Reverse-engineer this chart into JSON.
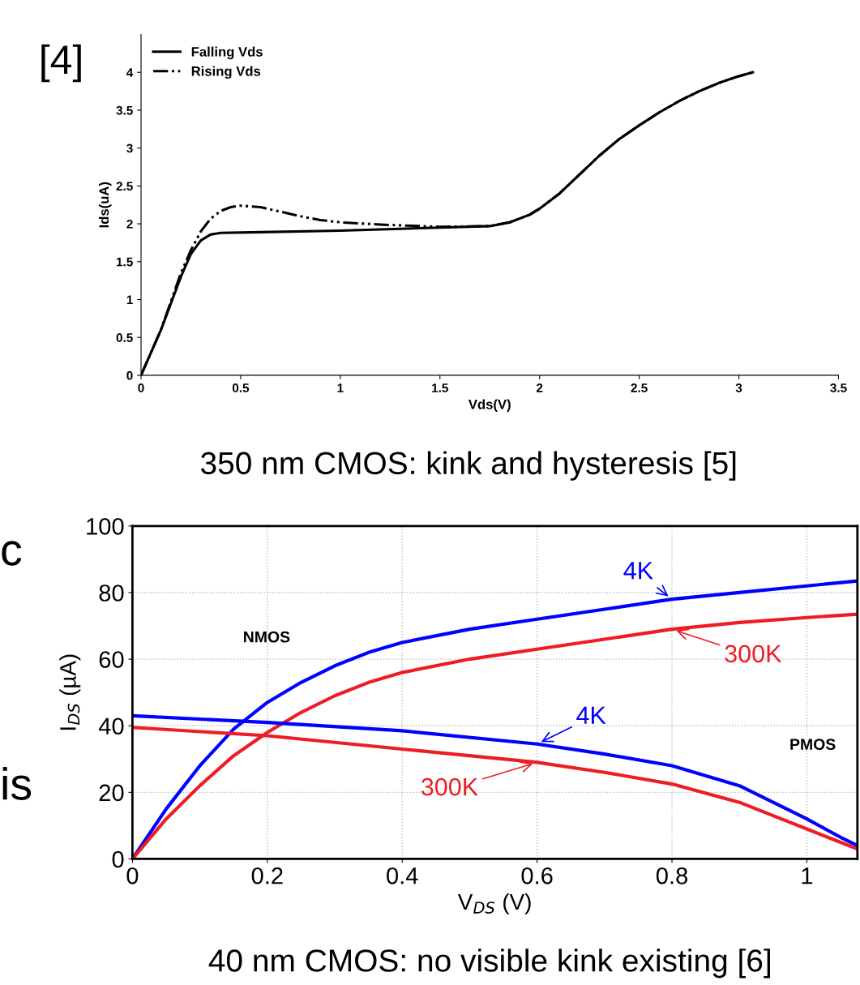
{
  "chart_data": [
    {
      "type": "line",
      "xlabel": "Vds(V)",
      "ylabel": "Ids(uA)",
      "xlim": [
        0,
        3.5
      ],
      "ylim": [
        0,
        4.5
      ],
      "xticks": [
        0,
        0.5,
        1,
        1.5,
        2,
        2.5,
        3,
        3.5
      ],
      "yticks": [
        0,
        0.5,
        1,
        1.5,
        2,
        2.5,
        3,
        3.5,
        4
      ],
      "grid": false,
      "legend": "top left",
      "marker": "none",
      "annotations": [
        "[4]",
        "350 nm CMOS: kink and hysteresis [5]"
      ],
      "series": [
        {
          "name": "Falling Vds",
          "color": "#000000",
          "line_style": "solid",
          "x": [
            0,
            0.1,
            0.2,
            0.25,
            0.3,
            0.35,
            0.4,
            0.6,
            1.0,
            1.5,
            1.75,
            1.85,
            1.95,
            2.0,
            2.1,
            2.2,
            2.3,
            2.4,
            2.5,
            2.6,
            2.7,
            2.8,
            2.9,
            3.0,
            3.07
          ],
          "values": [
            0,
            0.6,
            1.3,
            1.6,
            1.78,
            1.86,
            1.88,
            1.89,
            1.91,
            1.95,
            1.97,
            2.02,
            2.12,
            2.2,
            2.4,
            2.65,
            2.9,
            3.12,
            3.3,
            3.47,
            3.62,
            3.75,
            3.86,
            3.95,
            4.0
          ]
        },
        {
          "name": "Rising Vds",
          "color": "#000000",
          "line_style": "dashed",
          "x": [
            0,
            0.1,
            0.2,
            0.25,
            0.3,
            0.35,
            0.4,
            0.45,
            0.5,
            0.6,
            0.7,
            0.8,
            0.9,
            1.0,
            1.2,
            1.4,
            1.5,
            1.75,
            1.85,
            1.95,
            2.0,
            2.1,
            2.2,
            2.3,
            2.4,
            2.5,
            2.6,
            2.7,
            2.8,
            2.9,
            3.0,
            3.07
          ],
          "values": [
            0,
            0.6,
            1.35,
            1.65,
            1.9,
            2.07,
            2.17,
            2.22,
            2.24,
            2.22,
            2.16,
            2.1,
            2.05,
            2.02,
            1.99,
            1.97,
            1.96,
            1.97,
            2.02,
            2.12,
            2.2,
            2.4,
            2.65,
            2.9,
            3.12,
            3.3,
            3.47,
            3.62,
            3.75,
            3.86,
            3.95,
            4.0
          ]
        }
      ]
    },
    {
      "type": "line",
      "xlabel": "V$_{DS}$ (V)",
      "ylabel": "I$_{DS}$ (µA)",
      "xlim": [
        0,
        1.075
      ],
      "ylim": [
        0,
        100
      ],
      "xticks": [
        0,
        0.2,
        0.4,
        0.6,
        0.8,
        1
      ],
      "yticks": [
        0,
        20,
        40,
        60,
        80,
        100
      ],
      "grid": true,
      "marker": "none",
      "annotations": [
        "c",
        "is",
        "40 nm CMOS: no visible kink existing [6]",
        "NMOS",
        "PMOS"
      ],
      "series": [
        {
          "name": "4K",
          "color": "#0000ff",
          "x": [
            0,
            0.05,
            0.1,
            0.15,
            0.2,
            0.25,
            0.3,
            0.35,
            0.4,
            0.5,
            0.6,
            0.7,
            0.8,
            0.9,
            1.0,
            1.075
          ],
          "values": [
            0,
            15,
            28,
            39,
            47,
            53,
            58,
            62,
            65,
            69,
            72,
            75,
            78,
            80,
            82,
            83.5
          ]
        },
        {
          "name": "300K",
          "color": "#ee1c25",
          "x": [
            0,
            0.05,
            0.1,
            0.15,
            0.2,
            0.25,
            0.3,
            0.35,
            0.4,
            0.5,
            0.6,
            0.7,
            0.8,
            0.9,
            1.0,
            1.075
          ],
          "values": [
            0,
            12,
            22,
            31,
            38,
            44,
            49,
            53,
            56,
            60,
            63,
            66,
            69,
            71,
            72.5,
            73.5
          ]
        },
        {
          "name": "4K",
          "color": "#0000ff",
          "x": [
            0,
            0.2,
            0.4,
            0.6,
            0.7,
            0.8,
            0.9,
            0.95,
            1.0,
            1.05,
            1.075
          ],
          "values": [
            43,
            41,
            38.5,
            34.5,
            31.5,
            28,
            22,
            17,
            12,
            6.5,
            4
          ]
        },
        {
          "name": "300K",
          "color": "#ee1c25",
          "x": [
            0,
            0.2,
            0.4,
            0.6,
            0.7,
            0.8,
            0.9,
            0.95,
            1.0,
            1.05,
            1.075
          ],
          "values": [
            39.5,
            37,
            33,
            29,
            26,
            22.5,
            17,
            13,
            9,
            5,
            3
          ]
        }
      ]
    }
  ]
}
